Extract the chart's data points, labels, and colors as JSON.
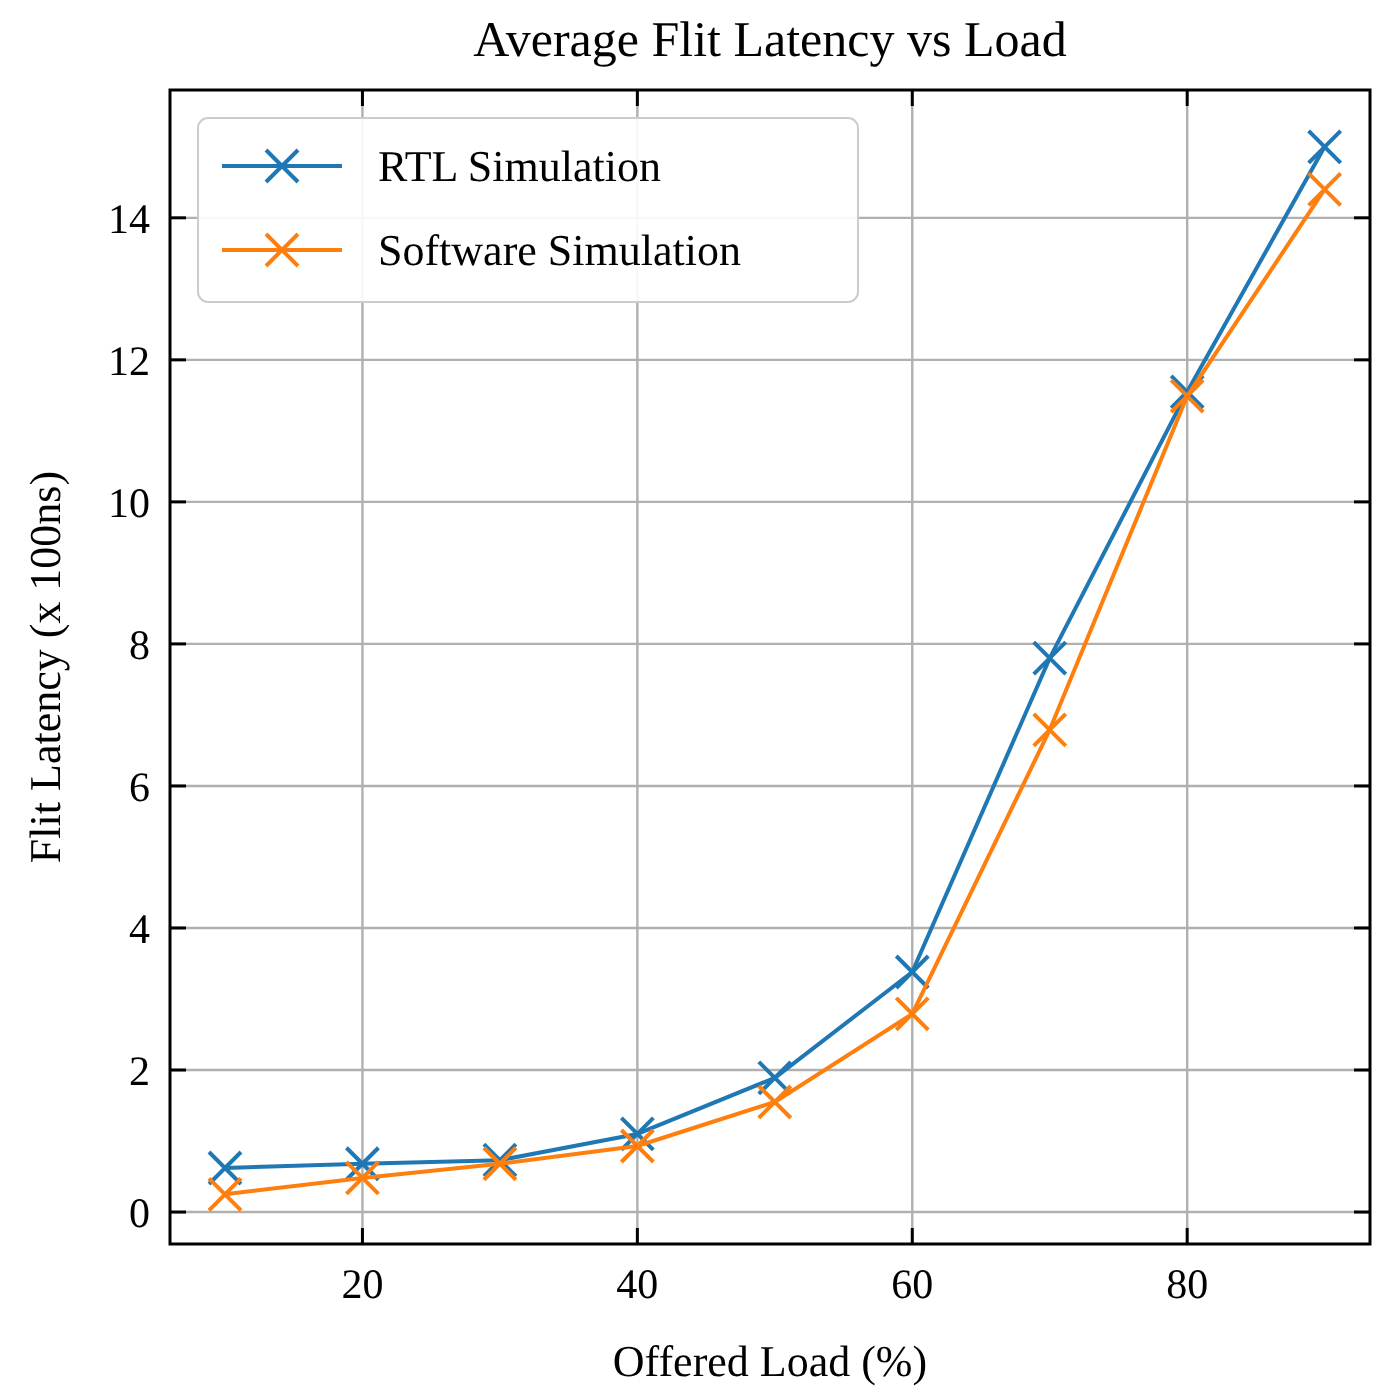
{
  "chart_data": {
    "type": "line",
    "title": "Average Flit Latency vs Load",
    "xlabel": "Offered Load (%)",
    "ylabel": "Flit Latency (x 100ns)",
    "x": [
      10,
      20,
      30,
      40,
      50,
      60,
      70,
      80,
      90
    ],
    "series": [
      {
        "name": "RTL Simulation",
        "color": "#1f77b4",
        "values": [
          0.62,
          0.68,
          0.73,
          1.1,
          1.89,
          3.38,
          7.8,
          11.55,
          15.0
        ]
      },
      {
        "name": "Software Simulation",
        "color": "#ff7f0e",
        "values": [
          0.25,
          0.48,
          0.68,
          0.93,
          1.55,
          2.79,
          6.79,
          11.49,
          14.4
        ]
      }
    ],
    "xlim": [
      6,
      93.3
    ],
    "ylim": [
      -0.45,
      15.8
    ],
    "xticks": [
      20,
      40,
      60,
      80
    ],
    "yticks": [
      0,
      2,
      4,
      6,
      8,
      10,
      12,
      14
    ],
    "grid": true,
    "legend": "top left",
    "marker": "cross",
    "line_style": "solid"
  }
}
